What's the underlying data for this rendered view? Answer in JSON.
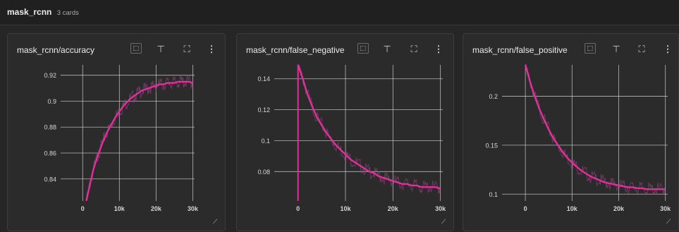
{
  "group": {
    "name": "mask_rcnn",
    "count_label": "3 cards"
  },
  "icons": {
    "dataset": "dataset-toggle-icon",
    "pin": "pin-icon",
    "fullscreen": "fullscreen-icon",
    "menu": "more-vert-icon",
    "resize": "resize-handle-icon"
  },
  "colors": {
    "series": "#e0309a",
    "raw": "#a04080",
    "grid": "#d0d0d0"
  },
  "cards": [
    {
      "title": "mask_rcnn/accuracy",
      "chart_data": {
        "type": "line",
        "title": "mask_rcnn/accuracy",
        "x_ticks": [
          "0",
          "10k",
          "20k",
          "30k"
        ],
        "y_ticks": [
          "0.84",
          "0.86",
          "0.88",
          "0.9",
          "0.92"
        ],
        "xlim": [
          -6000,
          30500
        ],
        "ylim": [
          0.823,
          0.928
        ],
        "grid": true,
        "series": [
          {
            "values": [
              [
                1000,
                0.823
              ],
              [
                2000,
                0.836
              ],
              [
                3000,
                0.848
              ],
              [
                4000,
                0.857
              ],
              [
                5000,
                0.865
              ],
              [
                6000,
                0.872
              ],
              [
                7000,
                0.878
              ],
              [
                8000,
                0.883
              ],
              [
                9000,
                0.888
              ],
              [
                10000,
                0.892
              ],
              [
                11000,
                0.896
              ],
              [
                12000,
                0.899
              ],
              [
                13000,
                0.902
              ],
              [
                14000,
                0.904
              ],
              [
                15000,
                0.906
              ],
              [
                16000,
                0.908
              ],
              [
                17000,
                0.909
              ],
              [
                18000,
                0.91
              ],
              [
                19000,
                0.911
              ],
              [
                20000,
                0.912
              ],
              [
                21000,
                0.913
              ],
              [
                22000,
                0.913
              ],
              [
                23000,
                0.914
              ],
              [
                24000,
                0.914
              ],
              [
                25000,
                0.914
              ],
              [
                26000,
                0.915
              ],
              [
                27000,
                0.915
              ],
              [
                28000,
                0.915
              ],
              [
                29000,
                0.915
              ],
              [
                30000,
                0.914
              ]
            ]
          }
        ]
      }
    },
    {
      "title": "mask_rcnn/false_negative",
      "chart_data": {
        "type": "line",
        "title": "mask_rcnn/false_negative",
        "x_ticks": [
          "0",
          "10k",
          "20k",
          "30k"
        ],
        "y_ticks": [
          "0.08",
          "0.1",
          "0.12",
          "0.14"
        ],
        "xlim": [
          -5000,
          30500
        ],
        "ylim": [
          0.061,
          0.149
        ],
        "grid": true,
        "series": [
          {
            "values": [
              [
                0,
                0.149
              ],
              [
                1000,
                0.14
              ],
              [
                2000,
                0.13
              ],
              [
                3000,
                0.122
              ],
              [
                4000,
                0.115
              ],
              [
                5000,
                0.11
              ],
              [
                6000,
                0.105
              ],
              [
                7000,
                0.101
              ],
              [
                8000,
                0.097
              ],
              [
                9000,
                0.094
              ],
              [
                10000,
                0.091
              ],
              [
                11000,
                0.088
              ],
              [
                12000,
                0.086
              ],
              [
                13000,
                0.084
              ],
              [
                14000,
                0.082
              ],
              [
                15000,
                0.08
              ],
              [
                16000,
                0.079
              ],
              [
                17000,
                0.077
              ],
              [
                18000,
                0.076
              ],
              [
                19000,
                0.075
              ],
              [
                20000,
                0.074
              ],
              [
                21000,
                0.073
              ],
              [
                22000,
                0.072
              ],
              [
                23000,
                0.072
              ],
              [
                24000,
                0.071
              ],
              [
                25000,
                0.071
              ],
              [
                26000,
                0.07
              ],
              [
                27000,
                0.07
              ],
              [
                28000,
                0.07
              ],
              [
                29000,
                0.07
              ],
              [
                30000,
                0.069
              ]
            ]
          }
        ]
      }
    },
    {
      "title": "mask_rcnn/false_positive",
      "chart_data": {
        "type": "line",
        "title": "mask_rcnn/false_positive",
        "x_ticks": [
          "0",
          "10k",
          "20k",
          "30k"
        ],
        "y_ticks": [
          "0.1",
          "0.15",
          "0.2"
        ],
        "xlim": [
          -5000,
          30500
        ],
        "ylim": [
          0.093,
          0.232
        ],
        "grid": true,
        "series": [
          {
            "values": [
              [
                0,
                0.232
              ],
              [
                1000,
                0.215
              ],
              [
                2000,
                0.2
              ],
              [
                3000,
                0.187
              ],
              [
                4000,
                0.176
              ],
              [
                5000,
                0.166
              ],
              [
                6000,
                0.157
              ],
              [
                7000,
                0.15
              ],
              [
                8000,
                0.143
              ],
              [
                9000,
                0.137
              ],
              [
                10000,
                0.132
              ],
              [
                11000,
                0.128
              ],
              [
                12000,
                0.124
              ],
              [
                13000,
                0.121
              ],
              [
                14000,
                0.118
              ],
              [
                15000,
                0.116
              ],
              [
                16000,
                0.114
              ],
              [
                17000,
                0.112
              ],
              [
                18000,
                0.111
              ],
              [
                19000,
                0.11
              ],
              [
                20000,
                0.109
              ],
              [
                21000,
                0.108
              ],
              [
                22000,
                0.107
              ],
              [
                23000,
                0.107
              ],
              [
                24000,
                0.106
              ],
              [
                25000,
                0.106
              ],
              [
                26000,
                0.105
              ],
              [
                27000,
                0.105
              ],
              [
                28000,
                0.105
              ],
              [
                29000,
                0.105
              ],
              [
                30000,
                0.105
              ]
            ]
          }
        ]
      }
    }
  ]
}
